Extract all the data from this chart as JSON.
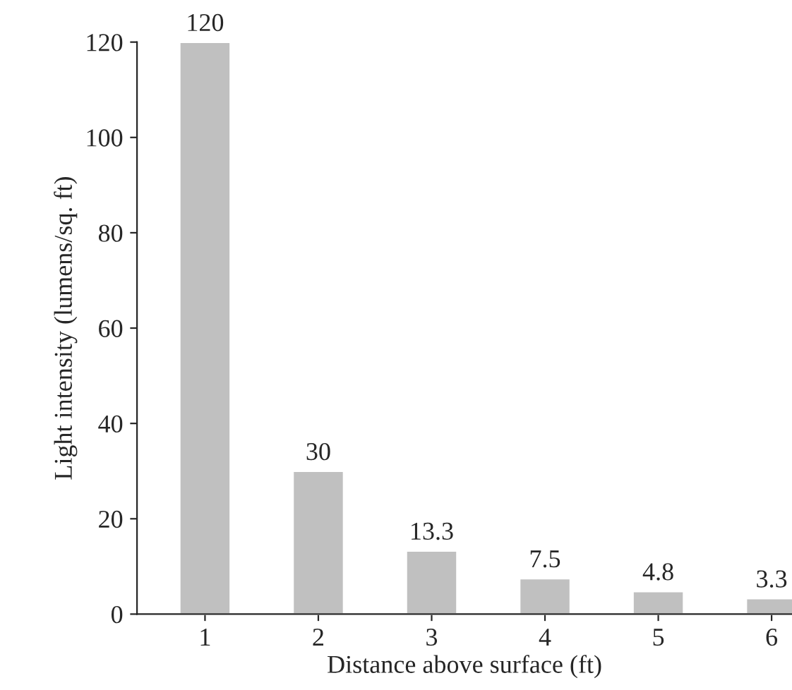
{
  "chart_data": {
    "type": "bar",
    "xlabel": "Distance above surface (ft)",
    "ylabel": "Light intensity (lumens/sq. ft)",
    "categories": [
      "1",
      "2",
      "3",
      "4",
      "5",
      "6"
    ],
    "values": [
      120,
      30,
      13.3,
      7.5,
      4.8,
      3.3
    ],
    "color": "#c0c0c0",
    "ylim": [
      0,
      120
    ],
    "yticks": [
      0,
      20,
      40,
      60,
      80,
      100,
      120
    ],
    "data_labels": true,
    "grid": false,
    "legend": false
  }
}
